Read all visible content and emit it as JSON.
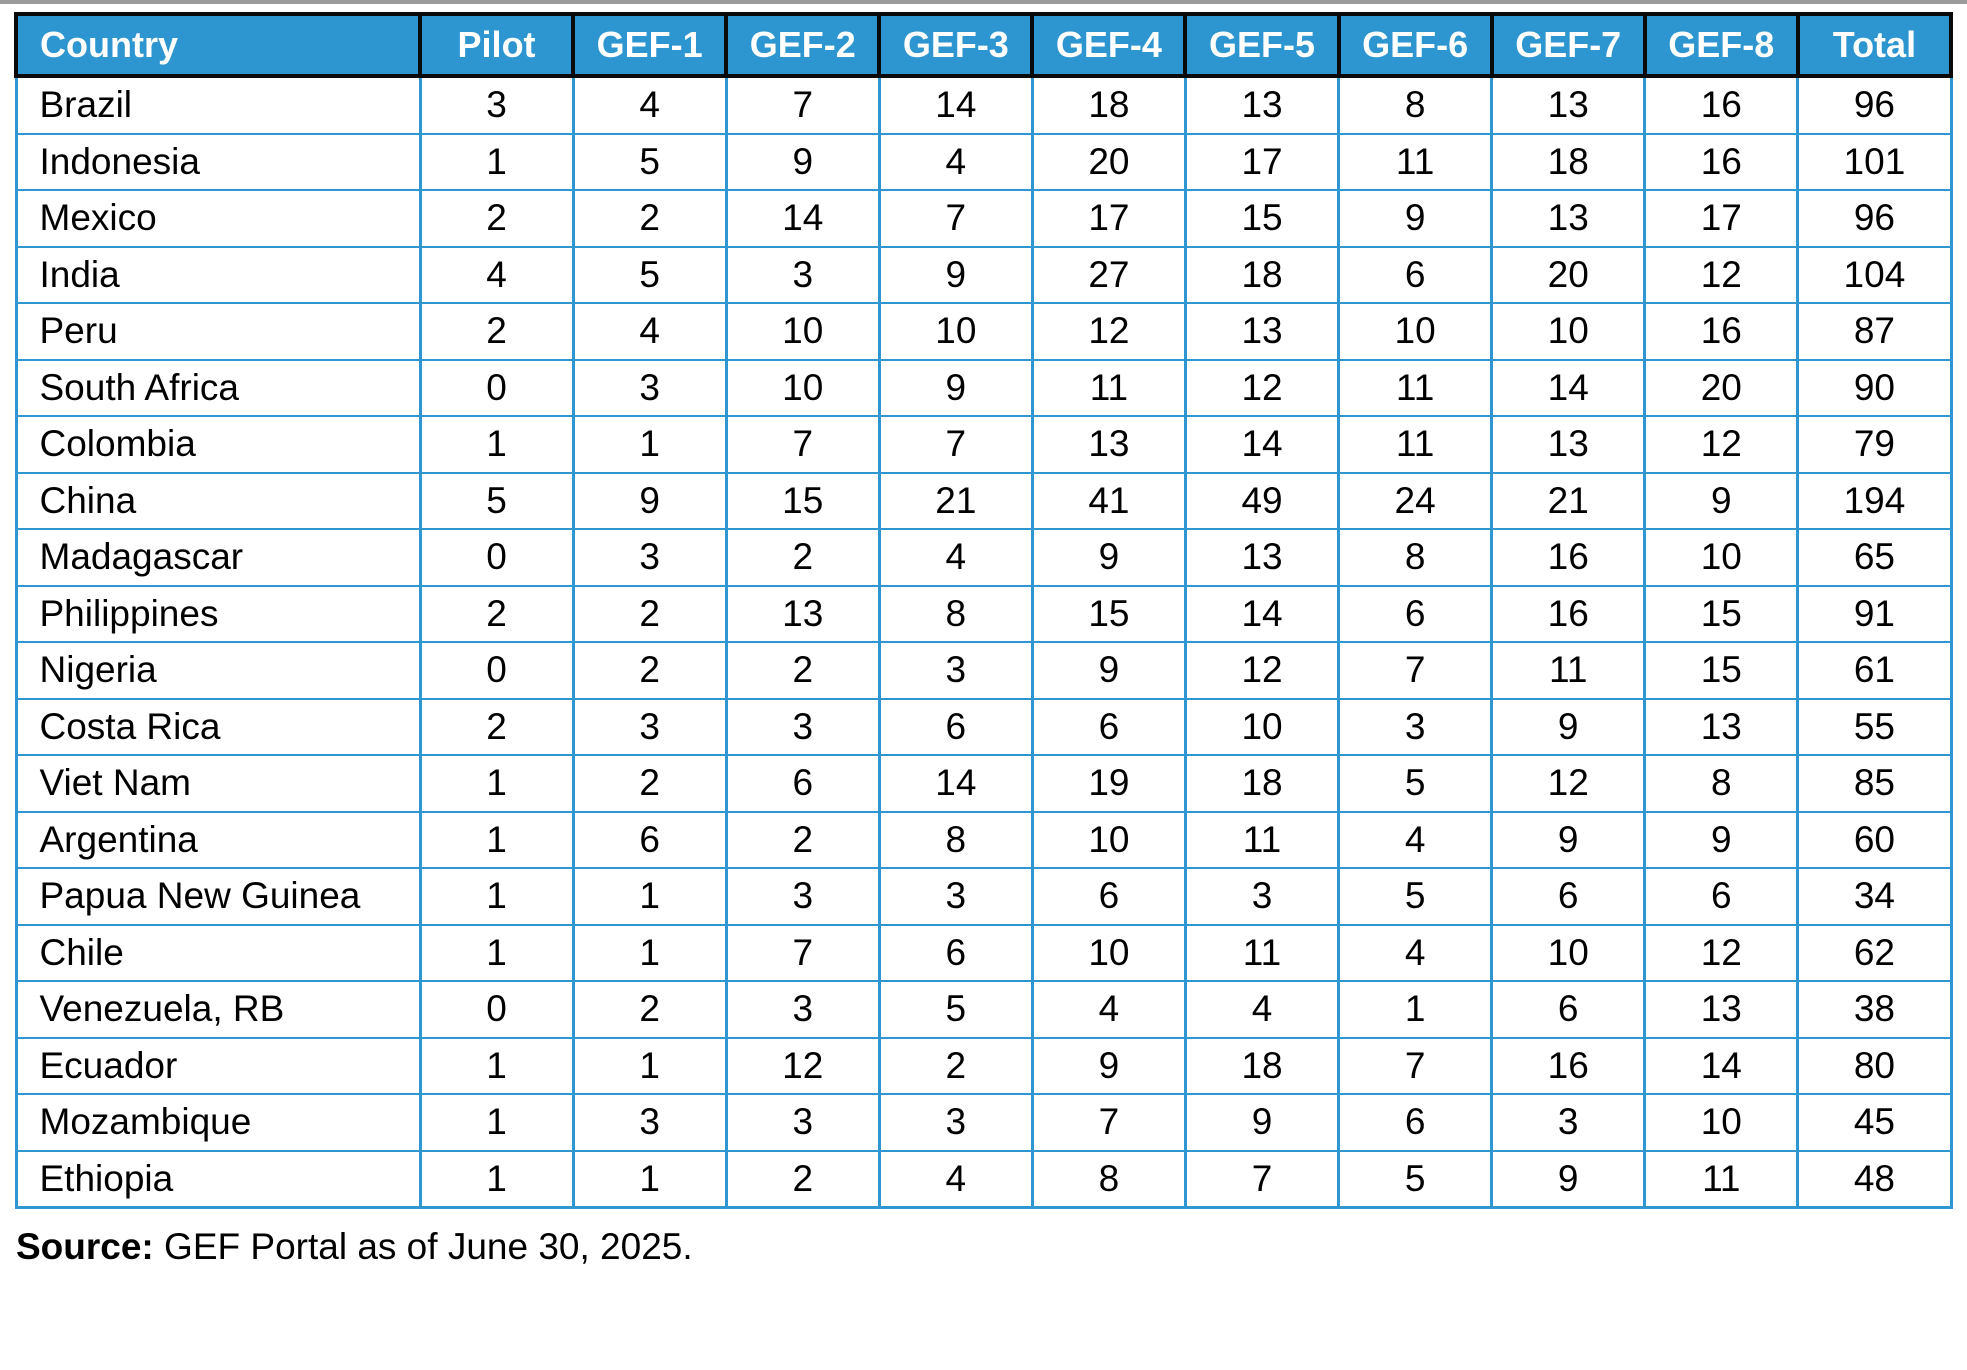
{
  "colors": {
    "header_bg": "#2D96D0",
    "header_text": "#FFFFFF",
    "grid_blue": "#2E96D0",
    "header_grid_black": "#0A0A0A",
    "body_text": "#000000",
    "top_crop_line": "#9B9B9B"
  },
  "chart_data": {
    "type": "table",
    "columns": [
      "Country",
      "Pilot",
      "GEF-1",
      "GEF-2",
      "GEF-3",
      "GEF-4",
      "GEF-5",
      "GEF-6",
      "GEF-7",
      "GEF-8",
      "Total"
    ],
    "rows": [
      [
        "Brazil",
        3,
        4,
        7,
        14,
        18,
        13,
        8,
        13,
        16,
        96
      ],
      [
        "Indonesia",
        1,
        5,
        9,
        4,
        20,
        17,
        11,
        18,
        16,
        101
      ],
      [
        "Mexico",
        2,
        2,
        14,
        7,
        17,
        15,
        9,
        13,
        17,
        96
      ],
      [
        "India",
        4,
        5,
        3,
        9,
        27,
        18,
        6,
        20,
        12,
        104
      ],
      [
        "Peru",
        2,
        4,
        10,
        10,
        12,
        13,
        10,
        10,
        16,
        87
      ],
      [
        "South Africa",
        0,
        3,
        10,
        9,
        11,
        12,
        11,
        14,
        20,
        90
      ],
      [
        "Colombia",
        1,
        1,
        7,
        7,
        13,
        14,
        11,
        13,
        12,
        79
      ],
      [
        "China",
        5,
        9,
        15,
        21,
        41,
        49,
        24,
        21,
        9,
        194
      ],
      [
        "Madagascar",
        0,
        3,
        2,
        4,
        9,
        13,
        8,
        16,
        10,
        65
      ],
      [
        "Philippines",
        2,
        2,
        13,
        8,
        15,
        14,
        6,
        16,
        15,
        91
      ],
      [
        "Nigeria",
        0,
        2,
        2,
        3,
        9,
        12,
        7,
        11,
        15,
        61
      ],
      [
        "Costa Rica",
        2,
        3,
        3,
        6,
        6,
        10,
        3,
        9,
        13,
        55
      ],
      [
        "Viet Nam",
        1,
        2,
        6,
        14,
        19,
        18,
        5,
        12,
        8,
        85
      ],
      [
        "Argentina",
        1,
        6,
        2,
        8,
        10,
        11,
        4,
        9,
        9,
        60
      ],
      [
        "Papua New Guinea",
        1,
        1,
        3,
        3,
        6,
        3,
        5,
        6,
        6,
        34
      ],
      [
        "Chile",
        1,
        1,
        7,
        6,
        10,
        11,
        4,
        10,
        12,
        62
      ],
      [
        "Venezuela, RB",
        0,
        2,
        3,
        5,
        4,
        4,
        1,
        6,
        13,
        38
      ],
      [
        "Ecuador",
        1,
        1,
        12,
        2,
        9,
        18,
        7,
        16,
        14,
        80
      ],
      [
        "Mozambique",
        1,
        3,
        3,
        3,
        7,
        9,
        6,
        3,
        10,
        45
      ],
      [
        "Ethiopia",
        1,
        1,
        2,
        4,
        8,
        7,
        5,
        9,
        11,
        48
      ]
    ]
  },
  "source": {
    "label": "Source:",
    "text": "GEF Portal as of June 30, 2025."
  }
}
